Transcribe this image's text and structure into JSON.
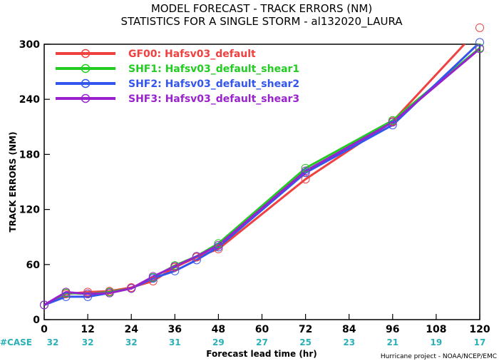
{
  "chart_data": {
    "type": "line",
    "title": "MODEL FORECAST - TRACK ERRORS (NM)",
    "subtitle": "STATISTICS FOR A SINGLE STORM - al132020_LAURA",
    "xlabel": "Forecast lead time (hr)",
    "ylabel": "TRACK ERRORS (NM)",
    "xlim": [
      0,
      120
    ],
    "ylim": [
      0,
      300
    ],
    "x_ticks": [
      "0",
      "12",
      "24",
      "36",
      "48",
      "60",
      "72",
      "84",
      "96",
      "108",
      "120"
    ],
    "y_ticks": [
      "0",
      "60",
      "120",
      "180",
      "240",
      "300"
    ],
    "case_label": "#CASE",
    "case_counts": [
      "32",
      "32",
      "32",
      "31",
      "29",
      "27",
      "25",
      "23",
      "21",
      "19",
      "17"
    ],
    "credit": "Hurricane project - NOAA/NCEP/EMC",
    "legend_position": "top-left",
    "grid": false,
    "x": [
      0,
      6,
      12,
      18,
      24,
      30,
      36,
      42,
      48,
      72,
      96,
      120
    ],
    "series": [
      {
        "name": "GF00: Hafsv03_default",
        "color": "#f04040",
        "values": [
          16,
          28,
          30,
          31,
          35,
          42,
          57,
          68,
          77,
          153,
          216,
          318
        ]
      },
      {
        "name": "SHF1: Hafsv03_default_shear1",
        "color": "#22cc22",
        "values": [
          16,
          29,
          28,
          30,
          34,
          46,
          59,
          69,
          83,
          165,
          217,
          296
        ]
      },
      {
        "name": "SHF2: Hafsv03_default_shear2",
        "color": "#3355ee",
        "values": [
          16,
          25,
          25,
          29,
          34,
          45,
          53,
          65,
          79,
          160,
          212,
          302
        ]
      },
      {
        "name": "SHF3: Hafsv03_default_shear3",
        "color": "#9922cc",
        "values": [
          16,
          30,
          28,
          29,
          34,
          47,
          58,
          69,
          81,
          162,
          215,
          295
        ]
      }
    ]
  }
}
